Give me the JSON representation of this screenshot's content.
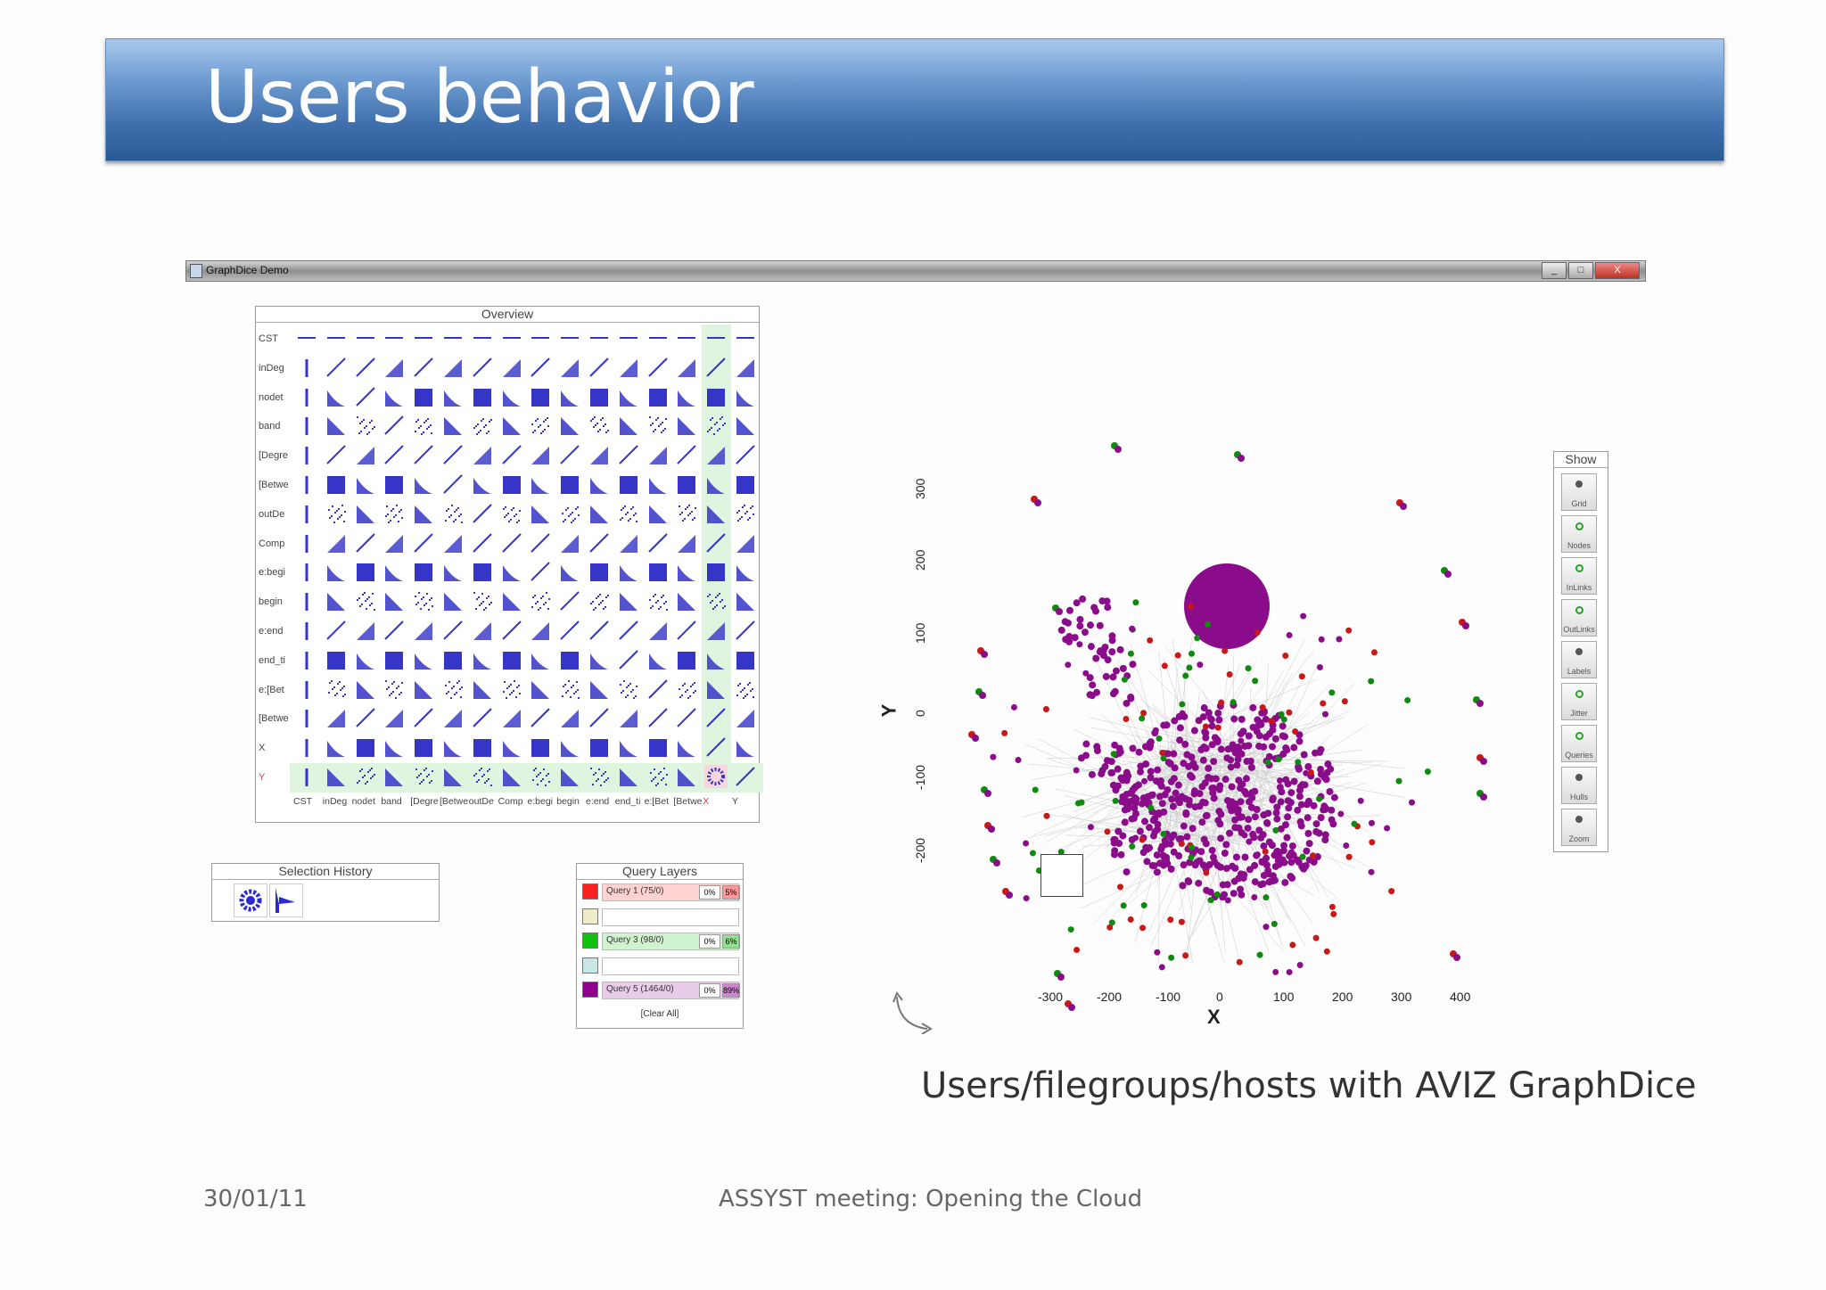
{
  "slide": {
    "title": "Users behavior",
    "caption": "Users/filegroups/hosts with AVIZ GraphDice",
    "date": "30/01/11",
    "footer": "ASSYST meeting: Opening the Cloud"
  },
  "window": {
    "title": "GraphDice Demo",
    "buttons": {
      "minimize": "_",
      "maximize": "□",
      "close": "X"
    }
  },
  "overview": {
    "title": "Overview",
    "row_labels": [
      "CST",
      "inDeg",
      "nodet",
      "band",
      "[Degre",
      "[Betwe",
      "outDe",
      "Comp",
      "e:begi",
      "begin",
      "e:end",
      "end_ti",
      "e:[Bet",
      "[Betwe",
      "X",
      "Y"
    ],
    "col_labels": [
      "CST",
      "inDeg",
      "nodet",
      "band",
      "[Degre",
      "[Betwe",
      "outDe",
      "Comp",
      "e:begi",
      "begin",
      "e:end",
      "end_ti",
      "e:[Bet",
      "[Betwe",
      "X",
      "Y"
    ],
    "highlight_row": "Y",
    "highlight_col": "X"
  },
  "selection_history": {
    "title": "Selection History",
    "items": [
      "cluster-thumbnail",
      "histogram-thumbnail"
    ]
  },
  "query_layers": {
    "title": "Query Layers",
    "rows": [
      {
        "color": "#ff2020",
        "name": "Query 1 (75/0)",
        "p1": "0%",
        "p2": "5%"
      },
      {
        "color": "#f0ecc8",
        "name": "",
        "p1": "",
        "p2": ""
      },
      {
        "color": "#10c010",
        "name": "Query 3 (98/0)",
        "p1": "0%",
        "p2": "6%"
      },
      {
        "color": "#c8e6e6",
        "name": "",
        "p1": "",
        "p2": ""
      },
      {
        "color": "#900090",
        "name": "Query 5 (1464/0)",
        "p1": "0%",
        "p2": "89%"
      }
    ],
    "clear_label": "[Clear All]"
  },
  "show_panel": {
    "title": "Show",
    "buttons": [
      {
        "label": "Grid",
        "state": "off"
      },
      {
        "label": "Nodes",
        "state": "on"
      },
      {
        "label": "InLinks",
        "state": "on"
      },
      {
        "label": "OutLinks",
        "state": "on"
      },
      {
        "label": "Labels",
        "state": "off"
      },
      {
        "label": "Jitter",
        "state": "on"
      },
      {
        "label": "Queries",
        "state": "on"
      },
      {
        "label": "Hulls",
        "state": "off"
      },
      {
        "label": "Zoom",
        "state": "off"
      }
    ]
  },
  "graph": {
    "x_label": "X",
    "y_label": "Y",
    "x_ticks": [
      "-300",
      "-200",
      "-100",
      "0",
      "100",
      "200",
      "300",
      "400"
    ],
    "y_ticks": [
      "300",
      "200",
      "100",
      "0",
      "-100",
      "-200"
    ],
    "colors": {
      "purple": "#8a0c8a",
      "green": "#0e8a0e",
      "red": "#c81818"
    }
  }
}
